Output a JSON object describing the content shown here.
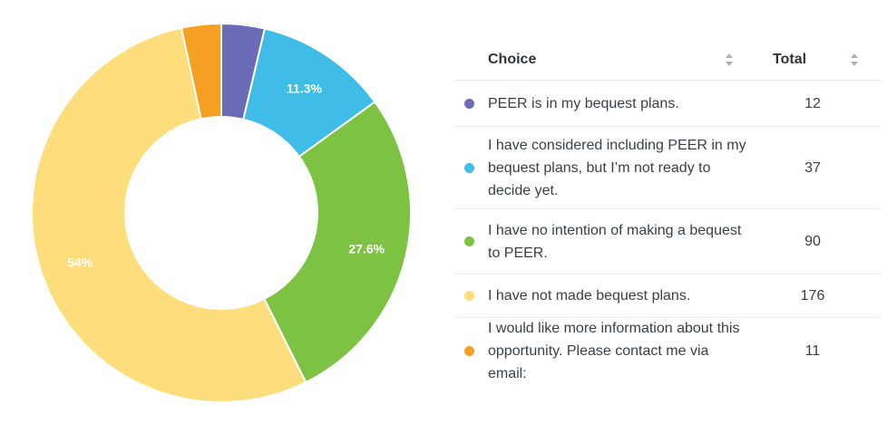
{
  "chart_data": {
    "type": "pie",
    "variant": "donut",
    "categories": [
      "PEER is in my bequest plans.",
      "I have considered including PEER in my bequest plans, but I’m not ready to decide yet.",
      "I have no intention of making a bequest to PEER.",
      "I have not made bequest plans.",
      "I would like more information about this opportunity. Please contact me via email:"
    ],
    "values": [
      12,
      37,
      90,
      176,
      11
    ],
    "data_labels": [
      "",
      "11.3%",
      "27.6%",
      "54%",
      ""
    ],
    "colors": [
      "#6b6bb8",
      "#40bde6",
      "#7dc243",
      "#fede7c",
      "#f5a023"
    ],
    "legend": "table-right"
  },
  "table": {
    "headers": {
      "choice": "Choice",
      "total": "Total"
    },
    "rows": [
      {
        "choice": "PEER is in my bequest plans.",
        "total": "12",
        "color": "#6b6bb8"
      },
      {
        "choice": "I have considered including PEER in my bequest plans, but I’m not ready to decide yet.",
        "total": "37",
        "color": "#40bde6"
      },
      {
        "choice": "I have no intention of making a bequest to PEER.",
        "total": "90",
        "color": "#7dc243"
      },
      {
        "choice": "I have not made bequest plans.",
        "total": "176",
        "color": "#fede7c"
      },
      {
        "choice": "I would like more information about this opportunity. Please contact me via email:",
        "total": "11",
        "color": "#f5a023"
      }
    ]
  }
}
